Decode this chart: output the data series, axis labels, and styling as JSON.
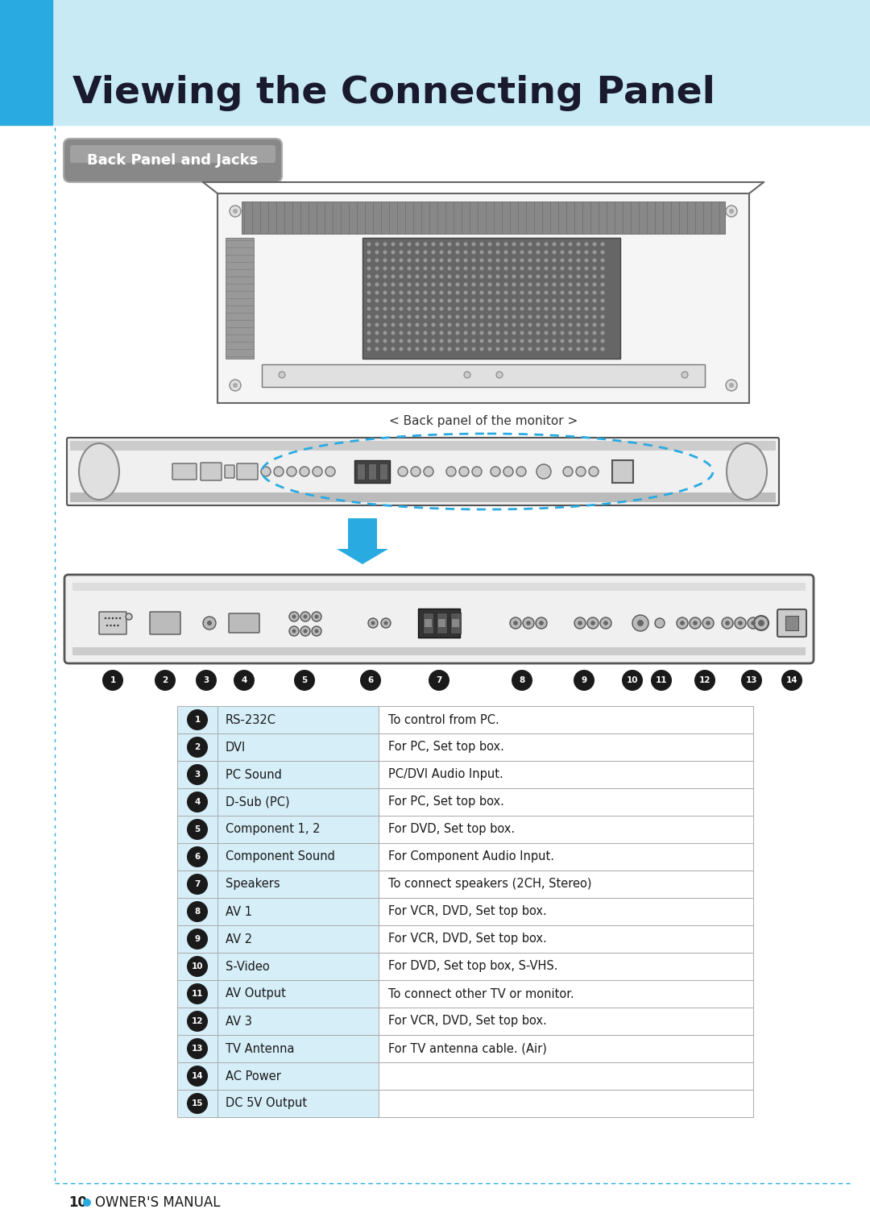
{
  "title": "Viewing the Connecting Panel",
  "title_color": "#1a1a2e",
  "header_bg_left": "#29ABE2",
  "header_bg_right": "#c8eaf5",
  "page_bg": "#ffffff",
  "left_bar_color": "#29ABE2",
  "section_label": "Back Panel and Jacks",
  "back_panel_caption": "< Back panel of the monitor >",
  "table_rows": [
    [
      "1",
      "RS-232C",
      "To control from PC."
    ],
    [
      "2",
      "DVI",
      "For PC, Set top box."
    ],
    [
      "3",
      "PC Sound",
      "PC/DVI Audio Input."
    ],
    [
      "4",
      "D-Sub (PC)",
      "For PC, Set top box."
    ],
    [
      "5",
      "Component 1, 2",
      "For DVD, Set top box."
    ],
    [
      "6",
      "Component Sound",
      "For Component Audio Input."
    ],
    [
      "7",
      "Speakers",
      "To connect speakers (2CH, Stereo)"
    ],
    [
      "8",
      "AV 1",
      "For VCR, DVD, Set top box."
    ],
    [
      "9",
      "AV 2",
      "For VCR, DVD, Set top box."
    ],
    [
      "10",
      "S-Video",
      "For DVD, Set top box, S-VHS."
    ],
    [
      "11",
      "AV Output",
      "To connect other TV or monitor."
    ],
    [
      "12",
      "AV 3",
      "For VCR, DVD, Set top box."
    ],
    [
      "13",
      "TV Antenna",
      "For TV antenna cable. (Air)"
    ],
    [
      "14",
      "AC Power",
      ""
    ],
    [
      "15",
      "DC 5V Output",
      ""
    ]
  ],
  "table_col_light": "#d6eef8",
  "table_col_white": "#ffffff",
  "table_border_color": "#aaaaaa",
  "arrow_color": "#29ABE2",
  "footer_dot_color": "#29ABE2",
  "dashed_border_color": "#29ABE2"
}
